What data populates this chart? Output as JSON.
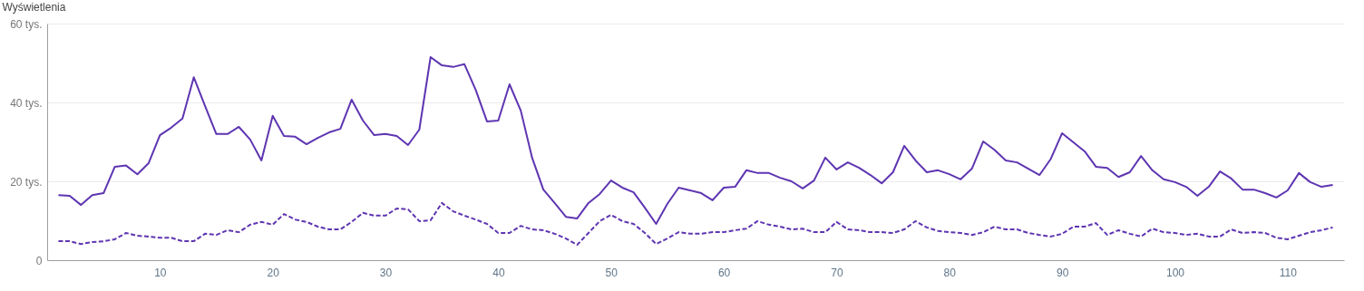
{
  "chart_data": {
    "type": "line",
    "ylabel": "Wyświetlenia",
    "x": [
      1,
      2,
      3,
      4,
      5,
      6,
      7,
      8,
      9,
      10,
      11,
      12,
      13,
      14,
      15,
      16,
      17,
      18,
      19,
      20,
      21,
      22,
      23,
      24,
      25,
      26,
      27,
      28,
      29,
      30,
      31,
      32,
      33,
      34,
      35,
      36,
      37,
      38,
      39,
      40,
      41,
      42,
      43,
      44,
      45,
      46,
      47,
      48,
      49,
      50,
      51,
      52,
      53,
      54,
      55,
      56,
      57,
      58,
      59,
      60,
      61,
      62,
      63,
      64,
      65,
      66,
      67,
      68,
      69,
      70,
      71,
      72,
      73,
      74,
      75,
      76,
      77,
      78,
      79,
      80,
      81,
      82,
      83,
      84,
      85,
      86,
      87,
      88,
      89,
      90,
      91,
      92,
      93,
      94,
      95,
      96,
      97,
      98,
      99,
      100,
      101,
      102,
      103,
      104,
      105,
      106,
      107,
      108,
      109,
      110,
      111,
      112,
      113,
      114
    ],
    "series": [
      {
        "color": "#5e35b1",
        "line_style": "solid",
        "values": [
          16.5,
          16.3,
          14.0,
          16.5,
          17.0,
          23.7,
          24.0,
          21.8,
          24.6,
          31.7,
          33.6,
          35.9,
          46.4,
          39.1,
          32.0,
          32.0,
          33.8,
          30.6,
          25.3,
          36.6,
          31.5,
          31.3,
          29.4,
          31.0,
          32.4,
          33.3,
          40.7,
          35.4,
          31.7,
          32.0,
          31.5,
          29.2,
          33.1,
          51.5,
          49.4,
          49.0,
          49.7,
          43.2,
          35.2,
          35.4,
          44.6,
          37.9,
          26.0,
          17.9,
          14.5,
          11.0,
          10.6,
          14.5,
          16.8,
          20.2,
          18.4,
          17.2,
          13.3,
          9.2,
          14.3,
          18.4,
          17.7,
          17.0,
          15.2,
          18.4,
          18.6,
          22.8,
          22.1,
          22.1,
          20.9,
          20.0,
          18.2,
          20.2,
          26.0,
          23.0,
          24.8,
          23.4,
          21.6,
          19.5,
          22.3,
          29.0,
          25.3,
          22.3,
          22.8,
          21.8,
          20.5,
          23.2,
          30.1,
          28.0,
          25.3,
          24.8,
          23.2,
          21.6,
          25.7,
          32.2,
          29.9,
          27.6,
          23.7,
          23.4,
          21.1,
          22.3,
          26.4,
          22.8,
          20.5,
          19.8,
          18.6,
          16.3,
          18.6,
          22.5,
          20.7,
          17.9,
          17.9,
          17.0,
          15.9,
          17.7,
          22.1,
          19.8,
          18.6,
          19.1
        ]
      },
      {
        "color": "#5e35b1",
        "line_style": "dashed",
        "values": [
          4.8,
          4.8,
          4.1,
          4.6,
          4.8,
          5.3,
          6.9,
          6.2,
          6.0,
          5.7,
          5.7,
          4.8,
          4.8,
          6.7,
          6.4,
          7.6,
          7.1,
          9.0,
          9.7,
          9.0,
          11.7,
          10.3,
          9.7,
          8.5,
          7.8,
          7.8,
          9.7,
          12.0,
          11.3,
          11.3,
          13.1,
          12.9,
          9.9,
          10.1,
          14.5,
          12.4,
          11.3,
          10.3,
          9.2,
          6.9,
          6.9,
          8.7,
          7.8,
          7.6,
          6.7,
          5.5,
          3.9,
          6.9,
          9.9,
          11.5,
          9.9,
          9.2,
          6.9,
          4.1,
          5.5,
          7.1,
          6.7,
          6.7,
          7.1,
          7.1,
          7.6,
          8.0,
          9.9,
          9.0,
          8.5,
          7.8,
          8.0,
          7.1,
          7.1,
          9.7,
          7.8,
          7.6,
          7.1,
          7.1,
          6.9,
          7.8,
          9.9,
          8.3,
          7.4,
          7.1,
          6.9,
          6.4,
          7.1,
          8.5,
          7.8,
          7.8,
          6.9,
          6.4,
          6.0,
          6.7,
          8.5,
          8.5,
          9.4,
          6.4,
          7.6,
          6.7,
          6.0,
          8.0,
          7.1,
          6.9,
          6.4,
          6.7,
          6.0,
          6.0,
          7.8,
          6.9,
          7.1,
          6.9,
          5.7,
          5.3,
          6.2,
          7.1,
          7.6,
          8.3
        ]
      }
    ],
    "xlim": [
      0,
      115
    ],
    "xticks": [
      10,
      20,
      30,
      40,
      50,
      60,
      70,
      80,
      90,
      100,
      110
    ],
    "ylim": [
      0,
      60
    ],
    "yticks": [
      0,
      {
        "value": 20,
        "label": "20 tys."
      },
      {
        "value": 40,
        "label": "40 tys."
      },
      {
        "value": 60,
        "label": "60 tys."
      }
    ],
    "grid": "y",
    "marker": "none"
  }
}
